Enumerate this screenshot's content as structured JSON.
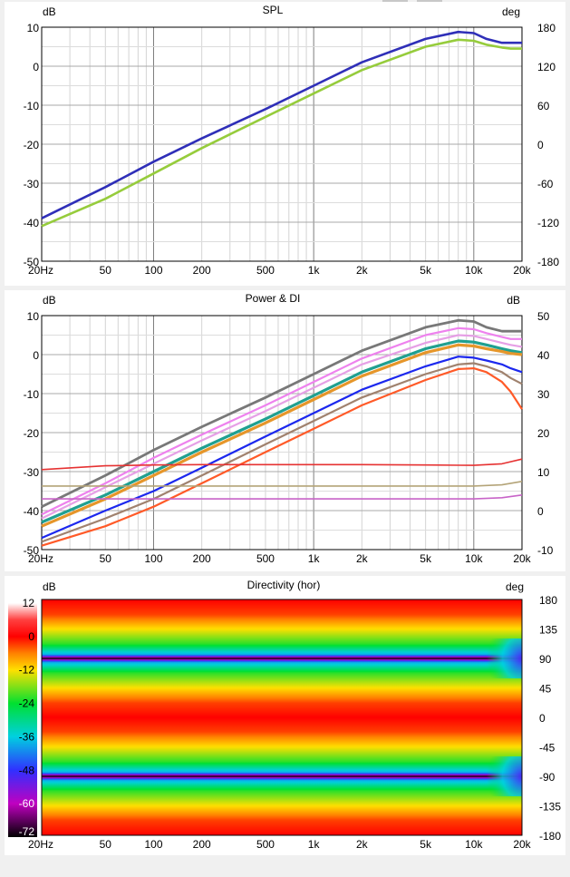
{
  "window": {
    "top_controls": [
      "",
      ""
    ]
  },
  "charts": [
    {
      "id": "spl",
      "title": "SPL",
      "left_unit": "dB",
      "right_unit": "deg",
      "left_ticks": [
        "10",
        "0",
        "-10",
        "-20",
        "-30",
        "-40",
        "-50"
      ],
      "right_ticks": [
        "180",
        "120",
        "60",
        "0",
        "-60",
        "-120",
        "-180"
      ],
      "x_ticks": [
        "20Hz",
        "50",
        "100",
        "200",
        "500",
        "1k",
        "2k",
        "5k",
        "10k",
        "20k"
      ]
    },
    {
      "id": "power",
      "title": "Power & DI",
      "left_unit": "dB",
      "right_unit": "dB",
      "left_ticks": [
        "10",
        "0",
        "-10",
        "-20",
        "-30",
        "-40",
        "-50"
      ],
      "right_ticks": [
        "50",
        "40",
        "30",
        "20",
        "10",
        "0",
        "-10"
      ],
      "x_ticks": [
        "20Hz",
        "50",
        "100",
        "200",
        "500",
        "1k",
        "2k",
        "5k",
        "10k",
        "20k"
      ]
    },
    {
      "id": "directivity",
      "title": "Directivity (hor)",
      "left_unit": "dB",
      "right_unit": "deg",
      "colorbar_ticks": [
        "12",
        "0",
        "-12",
        "-24",
        "-36",
        "-48",
        "-60",
        "-72"
      ],
      "right_ticks": [
        "180",
        "135",
        "90",
        "45",
        "0",
        "-45",
        "-90",
        "-135",
        "-180"
      ],
      "x_ticks": [
        "20Hz",
        "50",
        "100",
        "200",
        "500",
        "1k",
        "2k",
        "5k",
        "10k",
        "20k"
      ]
    }
  ],
  "chart_data": [
    {
      "type": "line",
      "title": "SPL",
      "xscale": "log",
      "xlim": [
        20,
        20000
      ],
      "ylim": [
        -50,
        10
      ],
      "y2lim": [
        -180,
        180
      ],
      "grid": true,
      "series": [
        {
          "color": "#2f2fb8",
          "x": [
            20,
            50,
            100,
            200,
            500,
            1000,
            2000,
            5000,
            8000,
            10000,
            12000,
            15000,
            17000,
            20000
          ],
          "y": [
            -39,
            -31,
            -24.5,
            -18.5,
            -11,
            -5,
            1,
            7,
            8.8,
            8.5,
            7,
            6,
            6,
            6
          ]
        },
        {
          "color": "#96cc3c",
          "x": [
            20,
            50,
            100,
            200,
            500,
            1000,
            2000,
            5000,
            8000,
            10000,
            12000,
            15000,
            17000,
            20000
          ],
          "y": [
            -41,
            -34,
            -27.5,
            -21,
            -13,
            -7,
            -1,
            5,
            6.8,
            6.5,
            5.5,
            4.8,
            4.5,
            4.5
          ]
        }
      ]
    },
    {
      "type": "line",
      "title": "Power & DI",
      "xscale": "log",
      "xlim": [
        20,
        20000
      ],
      "ylim": [
        -50,
        10
      ],
      "y2lim": [
        -10,
        50
      ],
      "grid": true,
      "series": [
        {
          "color": "#787878",
          "x": [
            20,
            50,
            100,
            200,
            500,
            1000,
            2000,
            5000,
            8000,
            10000,
            12000,
            15000,
            17000,
            20000
          ],
          "y": [
            -39,
            -31,
            -24.5,
            -18.5,
            -11,
            -5,
            1,
            7,
            8.8,
            8.5,
            7,
            6,
            6,
            6
          ]
        },
        {
          "color": "#ee82ee",
          "x": [
            20,
            50,
            100,
            200,
            500,
            1000,
            2000,
            5000,
            8000,
            10000,
            12000,
            15000,
            17000,
            20000
          ],
          "y": [
            -41,
            -33,
            -26.5,
            -20.5,
            -13,
            -7,
            -1,
            5,
            6.8,
            6.5,
            5.5,
            4.5,
            4,
            4
          ]
        },
        {
          "color": "#e6a0e6",
          "x": [
            20,
            50,
            100,
            200,
            500,
            1000,
            2000,
            5000,
            8000,
            10000,
            12000,
            15000,
            17000,
            20000
          ],
          "y": [
            -42,
            -34,
            -28,
            -22,
            -14.5,
            -8.5,
            -2.5,
            3,
            5,
            4.8,
            4,
            3,
            2.5,
            2
          ]
        },
        {
          "color": "#20a090",
          "x": [
            20,
            50,
            100,
            200,
            500,
            1000,
            2000,
            5000,
            8000,
            10000,
            12000,
            15000,
            17000,
            20000
          ],
          "y": [
            -43,
            -36,
            -30,
            -24,
            -16.5,
            -10.5,
            -4.5,
            1.5,
            3.5,
            3.2,
            2.5,
            1.5,
            1,
            0.5
          ]
        },
        {
          "color": "#e6962a",
          "x": [
            20,
            50,
            100,
            200,
            500,
            1000,
            2000,
            5000,
            8000,
            10000,
            12000,
            15000,
            17000,
            20000
          ],
          "y": [
            -44,
            -37,
            -31,
            -25,
            -17.5,
            -11.5,
            -5.5,
            0.5,
            2.5,
            2.2,
            1.5,
            0.8,
            0.3,
            0
          ]
        },
        {
          "color": "#1c28ee",
          "x": [
            20,
            50,
            100,
            200,
            500,
            1000,
            2000,
            5000,
            8000,
            10000,
            12000,
            15000,
            17000,
            20000
          ],
          "y": [
            -47,
            -40,
            -35,
            -29,
            -21,
            -15,
            -9,
            -3,
            -0.5,
            -0.8,
            -1.5,
            -2.5,
            -3.5,
            -4.5
          ]
        },
        {
          "color": "#a0826e",
          "x": [
            20,
            50,
            100,
            200,
            500,
            1000,
            2000,
            5000,
            8000,
            10000,
            12000,
            15000,
            17000,
            20000
          ],
          "y": [
            -48,
            -42,
            -37,
            -31,
            -23,
            -17,
            -11,
            -5,
            -2.5,
            -2.2,
            -3,
            -4.5,
            -6,
            -7.5
          ]
        },
        {
          "color": "#ff5a28",
          "x": [
            20,
            50,
            100,
            200,
            500,
            1000,
            2000,
            5000,
            8000,
            10000,
            12000,
            15000,
            17000,
            20000
          ],
          "y": [
            -49,
            -44,
            -39,
            -33,
            -25,
            -19,
            -13,
            -6.5,
            -3.7,
            -3.5,
            -4.5,
            -7,
            -9.5,
            -14
          ]
        },
        {
          "color": "#e63232",
          "axis": "right",
          "x": [
            20,
            50,
            100,
            200,
            500,
            1000,
            2000,
            5000,
            10000,
            15000,
            20000
          ],
          "y": [
            10.5,
            11.5,
            11.7,
            11.8,
            11.8,
            11.8,
            11.8,
            11.7,
            11.6,
            12,
            13.2
          ]
        },
        {
          "color": "#b4a478",
          "axis": "right",
          "x": [
            20,
            50,
            100,
            200,
            500,
            1000,
            2000,
            5000,
            10000,
            15000,
            20000
          ],
          "y": [
            6.3,
            6.3,
            6.3,
            6.3,
            6.3,
            6.3,
            6.3,
            6.3,
            6.3,
            6.6,
            7.5
          ]
        },
        {
          "color": "#c864c8",
          "axis": "right",
          "x": [
            20,
            50,
            100,
            200,
            500,
            1000,
            2000,
            5000,
            10000,
            15000,
            20000
          ],
          "y": [
            3,
            3,
            3,
            3,
            3,
            3,
            3,
            3,
            3,
            3.3,
            4
          ]
        }
      ]
    },
    {
      "type": "heatmap",
      "title": "Directivity (hor)",
      "xscale": "log",
      "xlim": [
        20,
        20000
      ],
      "ylim": [
        -180,
        180
      ],
      "zlim": [
        -72,
        12
      ],
      "colorscale": [
        {
          "value": 12,
          "color": "#ffffff"
        },
        {
          "value": 6,
          "color": "#ff4040"
        },
        {
          "value": 0,
          "color": "#ff0000"
        },
        {
          "value": -6,
          "color": "#ff8000"
        },
        {
          "value": -12,
          "color": "#ffe000"
        },
        {
          "value": -24,
          "color": "#00e030"
        },
        {
          "value": -36,
          "color": "#00d0e0"
        },
        {
          "value": -48,
          "color": "#3030ff"
        },
        {
          "value": -60,
          "color": "#c000c0"
        },
        {
          "value": -72,
          "color": "#000000"
        }
      ],
      "angle_profile_dB": {
        "angles": [
          180,
          157,
          135,
          112,
          95,
          90,
          85,
          68,
          45,
          22,
          0,
          -22,
          -45,
          -68,
          -85,
          -90,
          -95,
          -112,
          -135,
          -157,
          -180
        ],
        "levels": [
          0,
          -3,
          -12,
          -22,
          -40,
          -72,
          -40,
          -22,
          -12,
          -3,
          0,
          -3,
          -12,
          -22,
          -40,
          -72,
          -40,
          -22,
          -12,
          -3,
          0
        ]
      },
      "hf_null_spread": {
        "from_hz": 12000,
        "to_hz": 20000,
        "angles": [
          90,
          -90
        ],
        "level": -50
      }
    }
  ]
}
